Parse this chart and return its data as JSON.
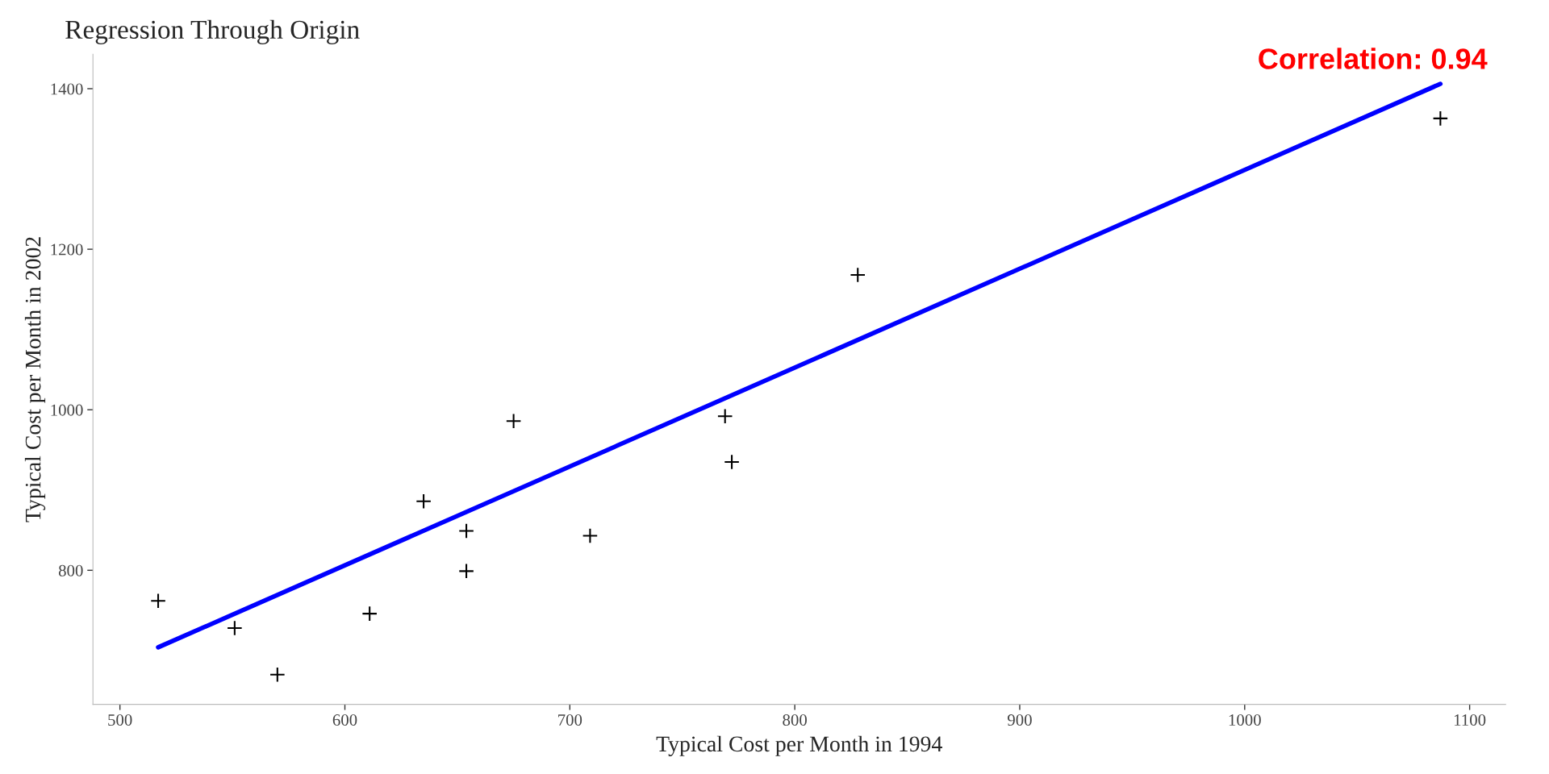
{
  "chart_data": {
    "type": "scatter",
    "title": "Regression Through Origin",
    "xlabel": "Typical Cost per Month in 1994",
    "ylabel": "Typical Cost per Month in 2002",
    "series": [
      {
        "color": "#000000",
        "marker": "cross",
        "x": [
          517,
          551,
          570,
          611,
          635,
          654,
          654,
          675,
          709,
          769,
          772,
          828,
          1087
        ],
        "values": [
          762,
          728,
          670,
          746,
          886,
          849,
          799,
          986,
          843,
          992,
          935,
          1168,
          1363
        ]
      },
      {
        "type": "line",
        "color": "#0000ff",
        "line_style": "solid",
        "x": [
          517,
          1087
        ],
        "values": [
          704,
          1406
        ]
      }
    ],
    "annotations": [
      {
        "text": "Correlation: 0.94",
        "x": 1087,
        "y": 1406
      }
    ],
    "xlim": [
      488,
      1116
    ],
    "ylim": [
      633,
      1443
    ],
    "xticks": [
      500,
      600,
      700,
      800,
      900,
      1000,
      1100
    ],
    "yticks": [
      800,
      1000,
      1200,
      1400
    ],
    "grid": false,
    "legend": false
  }
}
